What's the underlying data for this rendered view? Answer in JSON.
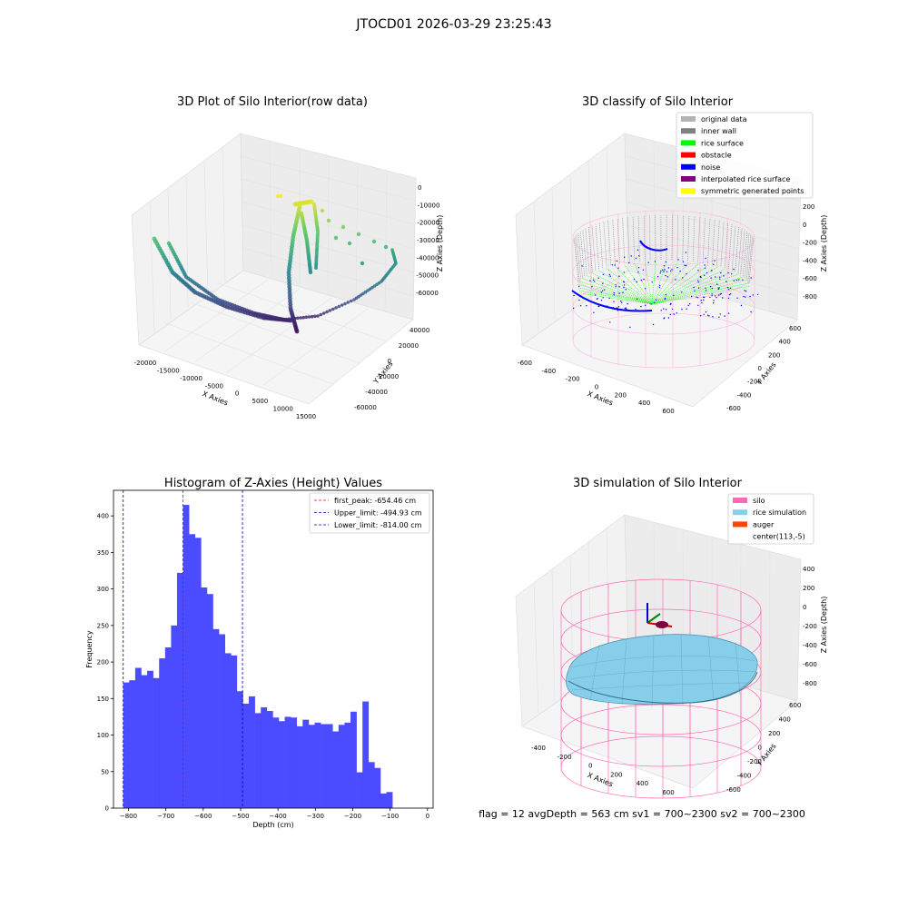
{
  "figure": {
    "title": "JTOCD01 2026-03-29 23:25:43",
    "footer": "flag = 12   avgDepth = 563 cm   sv1 = 700~2300  sv2 = 700~2300"
  },
  "colors": {
    "histogram_bar": "#4b4bff",
    "first_peak_line": "#ff0000",
    "limit_lines": "#0000cc",
    "silo": "#ff69b4",
    "rice_simulation": "#87ceeb",
    "auger": "#ff4500",
    "inner_wall": "#808080",
    "rice_surface": "#00ff00",
    "noise": "#0000ff"
  },
  "panels": {
    "raw": {
      "title": "3D Plot of Silo Interior(row data)",
      "xlabel": "X Axies",
      "ylabel": "Y Axies",
      "zlabel": "Z Axies (Depth)",
      "xticks": [
        "-20000",
        "-15000",
        "-10000",
        "-5000",
        "0",
        "5000",
        "10000",
        "15000"
      ],
      "yticks": [
        "-60000",
        "-40000",
        "-20000",
        "0",
        "20000",
        "40000"
      ],
      "zticks": [
        "0",
        "-10000",
        "-20000",
        "-30000",
        "-40000",
        "-50000",
        "-60000"
      ]
    },
    "classify": {
      "title": "3D classify of Silo Interior",
      "xlabel": "X Axies",
      "ylabel": "Y Axies",
      "zlabel": "Z Axies (Depth)",
      "xticks": [
        "-600",
        "-400",
        "-200",
        "0",
        "200",
        "400",
        "600"
      ],
      "yticks": [
        "-600",
        "-400",
        "-200",
        "0",
        "200",
        "400",
        "600"
      ],
      "zticks": [
        "200",
        "0",
        "-200",
        "-400",
        "-600",
        "-800"
      ],
      "zticks_partial": "00",
      "legend": [
        {
          "label": "original data",
          "color": "#b3b3b3"
        },
        {
          "label": "inner wall",
          "color": "#808080"
        },
        {
          "label": "rice surface",
          "color": "#00ff00"
        },
        {
          "label": "obstacle",
          "color": "#ff0000"
        },
        {
          "label": "noise",
          "color": "#0000ff"
        },
        {
          "label": "interpolated rice surface",
          "color": "#800080"
        },
        {
          "label": "symmetric generated points",
          "color": "#ffff00"
        }
      ]
    },
    "simulation": {
      "title": "3D simulation of Silo Interior",
      "xlabel": "X Axies",
      "ylabel": "Y Axies",
      "zlabel": "Z Axies (Depth)",
      "xticks": [
        "-400",
        "-200",
        "0",
        "200",
        "400",
        "600"
      ],
      "yticks": [
        "-600",
        "-400",
        "-200",
        "0",
        "200",
        "400",
        "600"
      ],
      "zticks": [
        "400",
        "200",
        "0",
        "-200",
        "-400",
        "-600",
        "-800"
      ],
      "legend": [
        {
          "label": "silo",
          "color": "#ff69b4"
        },
        {
          "label": "rice simulation",
          "color": "#87ceeb"
        },
        {
          "label": "auger",
          "color": "#ff4500"
        },
        {
          "label": "center(113,-5)",
          "color": ""
        }
      ]
    }
  },
  "chart_data": {
    "type": "bar",
    "title": "Histogram of Z-Axies (Height) Values",
    "xlabel": "Depth (cm)",
    "ylabel": "Frequency",
    "xlim": [
      -840,
      15
    ],
    "ylim": [
      0,
      435
    ],
    "bin_start": -814,
    "bin_width": 16,
    "values": [
      172,
      175,
      192,
      182,
      188,
      178,
      205,
      220,
      250,
      322,
      415,
      375,
      370,
      302,
      293,
      245,
      238,
      212,
      209,
      160,
      143,
      153,
      130,
      138,
      133,
      124,
      119,
      125,
      124,
      112,
      121,
      114,
      117,
      115,
      115,
      105,
      114,
      117,
      132,
      49,
      146,
      63,
      55,
      20,
      22
    ],
    "xticks": [
      -800,
      -700,
      -600,
      -500,
      -400,
      -300,
      -200,
      -100,
      0
    ],
    "xtick_labels": [
      "−800",
      "−700",
      "−600",
      "−500",
      "−400",
      "−300",
      "−200",
      "−100",
      "0"
    ],
    "yticks": [
      0,
      50,
      100,
      150,
      200,
      250,
      300,
      350,
      400
    ],
    "vlines": [
      {
        "label": "first_peak: -654.46 cm",
        "x": -654.46,
        "color": "#ff0000"
      },
      {
        "label": "Upper_limit: -494.93 cm",
        "x": -494.93,
        "color": "#0000cc"
      },
      {
        "label": "Lower_limit: -814.00 cm",
        "x": -814.0,
        "color": "#0000cc"
      }
    ],
    "legend_position": "top-right",
    "grid": false
  }
}
